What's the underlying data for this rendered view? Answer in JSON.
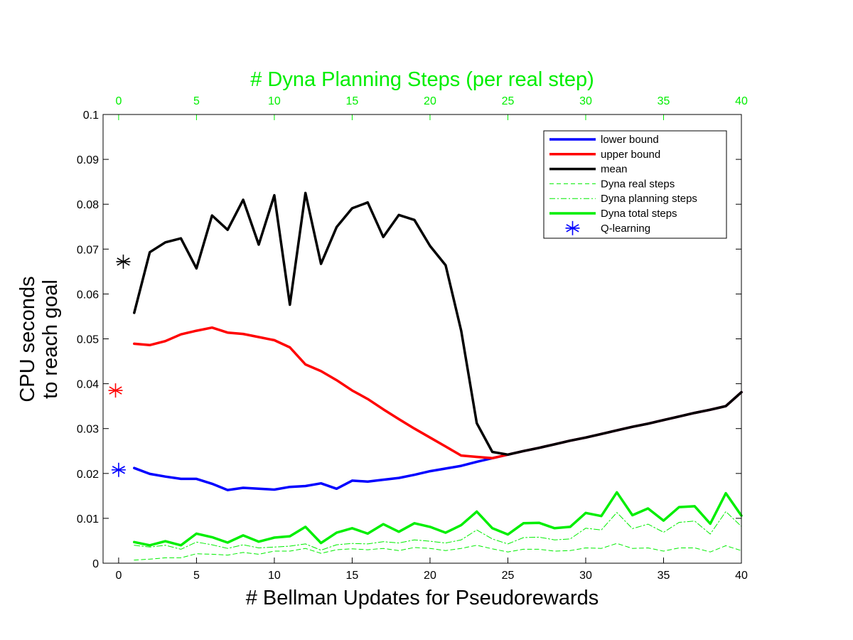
{
  "colors": {
    "lower": "#0000ff",
    "upper": "#ff0000",
    "mean": "#000000",
    "dyna": "#00ee00",
    "axis": "#000000"
  },
  "chart_data": {
    "type": "line",
    "top_axis_title": "# Dyna Planning Steps (per real step)",
    "xlabel": "# Bellman Updates for Pseudorewards",
    "ylabel_lines": [
      "CPU seconds",
      "to reach goal"
    ],
    "xlim": [
      -1,
      40
    ],
    "ylim": [
      0,
      0.1
    ],
    "x_ticks": [
      0,
      5,
      10,
      15,
      20,
      25,
      30,
      35,
      40
    ],
    "x_tick_labels": [
      "0",
      "5",
      "10",
      "15",
      "20",
      "25",
      "30",
      "35",
      "40"
    ],
    "top_ticks": [
      0,
      5,
      10,
      15,
      20,
      25,
      30,
      35,
      40
    ],
    "top_tick_labels": [
      "0",
      "5",
      "10",
      "15",
      "20",
      "25",
      "30",
      "35",
      "40"
    ],
    "y_ticks": [
      0,
      0.01,
      0.02,
      0.03,
      0.04,
      0.05,
      0.06,
      0.07,
      0.08,
      0.09,
      0.1
    ],
    "y_tick_labels": [
      "0",
      "0.01",
      "0.02",
      "0.03",
      "0.04",
      "0.05",
      "0.06",
      "0.07",
      "0.08",
      "0.09",
      "0.1"
    ],
    "legend_position": "top-right",
    "series": [
      {
        "name": "lower bound",
        "key": "lower",
        "style": "solid",
        "width": 3.5,
        "x": [
          1,
          2,
          3,
          4,
          5,
          6,
          7,
          8,
          9,
          10,
          11,
          12,
          13,
          14,
          15,
          16,
          17,
          18,
          19,
          20,
          21,
          22,
          23,
          24,
          25,
          26,
          27,
          28,
          29,
          30,
          31,
          32,
          33,
          34,
          35,
          36,
          37,
          38,
          39,
          40
        ],
        "y": [
          0.0212,
          0.0199,
          0.0193,
          0.0188,
          0.0188,
          0.0177,
          0.0163,
          0.0168,
          0.0166,
          0.0164,
          0.017,
          0.0172,
          0.0178,
          0.0166,
          0.0184,
          0.0182,
          0.0186,
          0.019,
          0.0197,
          0.0205,
          0.0211,
          0.0217,
          0.0226,
          0.0234,
          0.0242,
          0.025,
          0.0257,
          0.0265,
          0.0273,
          0.028,
          0.0288,
          0.0296,
          0.0304,
          0.0311,
          0.0319,
          0.0327,
          0.0335,
          0.0342,
          0.035,
          0.0381
        ]
      },
      {
        "name": "upper bound",
        "key": "upper",
        "style": "solid",
        "width": 3.5,
        "x": [
          1,
          2,
          3,
          4,
          5,
          6,
          7,
          8,
          9,
          10,
          11,
          12,
          13,
          14,
          15,
          16,
          17,
          18,
          19,
          20,
          21,
          22,
          23,
          24,
          25,
          26,
          27,
          28,
          29,
          30,
          31,
          32,
          33,
          34,
          35,
          36,
          37,
          38,
          39,
          40
        ],
        "y": [
          0.0489,
          0.0486,
          0.0495,
          0.051,
          0.0518,
          0.0525,
          0.0514,
          0.0511,
          0.0504,
          0.0497,
          0.0481,
          0.0443,
          0.0428,
          0.0408,
          0.0385,
          0.0366,
          0.0343,
          0.0321,
          0.03,
          0.028,
          0.026,
          0.024,
          0.0237,
          0.0234,
          0.0242,
          0.025,
          0.0257,
          0.0265,
          0.0273,
          0.028,
          0.0288,
          0.0296,
          0.0304,
          0.0311,
          0.0319,
          0.0327,
          0.0335,
          0.0342,
          0.035,
          0.0381
        ]
      },
      {
        "name": "mean",
        "key": "mean",
        "style": "solid",
        "width": 3.5,
        "x": [
          1,
          2,
          3,
          4,
          5,
          6,
          7,
          8,
          9,
          10,
          11,
          12,
          13,
          14,
          15,
          16,
          17,
          18,
          19,
          20,
          21,
          22,
          23,
          24,
          25,
          26,
          27,
          28,
          29,
          30,
          31,
          32,
          33,
          34,
          35,
          36,
          37,
          38,
          39,
          40
        ],
        "y": [
          0.0558,
          0.0693,
          0.0715,
          0.0724,
          0.0657,
          0.0775,
          0.0743,
          0.081,
          0.071,
          0.082,
          0.0576,
          0.0825,
          0.0667,
          0.0749,
          0.0791,
          0.0804,
          0.0727,
          0.0776,
          0.0765,
          0.0707,
          0.0664,
          0.0518,
          0.0312,
          0.0248,
          0.0242,
          0.025,
          0.0257,
          0.0265,
          0.0273,
          0.028,
          0.0288,
          0.0296,
          0.0304,
          0.0311,
          0.0319,
          0.0327,
          0.0335,
          0.0342,
          0.035,
          0.0381
        ]
      },
      {
        "name": "Dyna real steps",
        "key": "dyna",
        "style": "dashed",
        "width": 1,
        "x": [
          1,
          2,
          3,
          4,
          5,
          6,
          7,
          8,
          9,
          10,
          11,
          12,
          13,
          14,
          15,
          16,
          17,
          18,
          19,
          20,
          21,
          22,
          23,
          24,
          25,
          26,
          27,
          28,
          29,
          30,
          31,
          32,
          33,
          34,
          35,
          36,
          37,
          38,
          39,
          40
        ],
        "y": [
          0.0007,
          0.0009,
          0.0012,
          0.0012,
          0.0021,
          0.002,
          0.0018,
          0.0024,
          0.002,
          0.0027,
          0.0027,
          0.0033,
          0.0022,
          0.003,
          0.0032,
          0.003,
          0.0033,
          0.0028,
          0.0035,
          0.0033,
          0.0028,
          0.0033,
          0.004,
          0.0032,
          0.0025,
          0.0031,
          0.0031,
          0.0027,
          0.0028,
          0.0034,
          0.0033,
          0.0044,
          0.0033,
          0.0034,
          0.0027,
          0.0034,
          0.0034,
          0.0025,
          0.0039,
          0.0028
        ]
      },
      {
        "name": "Dyna planning steps",
        "key": "dyna",
        "style": "dashdot",
        "width": 1,
        "x": [
          1,
          2,
          3,
          4,
          5,
          6,
          7,
          8,
          9,
          10,
          11,
          12,
          13,
          14,
          15,
          16,
          17,
          18,
          19,
          20,
          21,
          22,
          23,
          24,
          25,
          26,
          27,
          28,
          29,
          30,
          31,
          32,
          33,
          34,
          35,
          36,
          37,
          38,
          39,
          40
        ],
        "y": [
          0.004,
          0.0036,
          0.004,
          0.0031,
          0.0047,
          0.0041,
          0.0033,
          0.0041,
          0.0034,
          0.0036,
          0.0038,
          0.0043,
          0.0029,
          0.0041,
          0.0044,
          0.0043,
          0.0048,
          0.0045,
          0.0052,
          0.0049,
          0.0045,
          0.0052,
          0.0074,
          0.0054,
          0.0043,
          0.0057,
          0.0058,
          0.0052,
          0.0054,
          0.0078,
          0.0074,
          0.0113,
          0.0077,
          0.0087,
          0.0069,
          0.0091,
          0.0094,
          0.0065,
          0.0115,
          0.0082
        ]
      },
      {
        "name": "Dyna total steps",
        "key": "dyna",
        "style": "solid",
        "width": 3.5,
        "x": [
          1,
          2,
          3,
          4,
          5,
          6,
          7,
          8,
          9,
          10,
          11,
          12,
          13,
          14,
          15,
          16,
          17,
          18,
          19,
          20,
          21,
          22,
          23,
          24,
          25,
          26,
          27,
          28,
          29,
          30,
          31,
          32,
          33,
          34,
          35,
          36,
          37,
          38,
          39,
          40
        ],
        "y": [
          0.0047,
          0.004,
          0.0049,
          0.004,
          0.0066,
          0.0058,
          0.0046,
          0.0062,
          0.0048,
          0.0057,
          0.006,
          0.0081,
          0.0045,
          0.0068,
          0.0078,
          0.0066,
          0.0087,
          0.007,
          0.0089,
          0.0081,
          0.0068,
          0.0085,
          0.0115,
          0.0078,
          0.0064,
          0.0089,
          0.009,
          0.0078,
          0.0081,
          0.0112,
          0.0105,
          0.0158,
          0.0107,
          0.0122,
          0.0095,
          0.0125,
          0.0127,
          0.0088,
          0.0156,
          0.0106
        ]
      }
    ],
    "qlearning_points": [
      {
        "x": 0,
        "y": 0.0208,
        "key": "lower",
        "dx": 0
      },
      {
        "x": 0,
        "y": 0.0385,
        "key": "upper",
        "dx": -0.2
      },
      {
        "x": 0,
        "y": 0.0672,
        "key": "mean",
        "dx": 0.3
      }
    ],
    "legend": [
      {
        "label": "lower bound",
        "key": "lower",
        "style": "solid",
        "width": 3.5
      },
      {
        "label": "upper bound",
        "key": "upper",
        "style": "solid",
        "width": 3.5
      },
      {
        "label": "mean",
        "key": "mean",
        "style": "solid",
        "width": 3.5
      },
      {
        "label": "Dyna real steps",
        "key": "dyna",
        "style": "dashed",
        "width": 1
      },
      {
        "label": "Dyna planning steps",
        "key": "dyna",
        "style": "dashdot",
        "width": 1
      },
      {
        "label": "Dyna total steps",
        "key": "dyna",
        "style": "solid",
        "width": 3.5
      },
      {
        "label": "Q-learning",
        "key": "lower",
        "style": "star",
        "width": 1.5
      }
    ]
  }
}
